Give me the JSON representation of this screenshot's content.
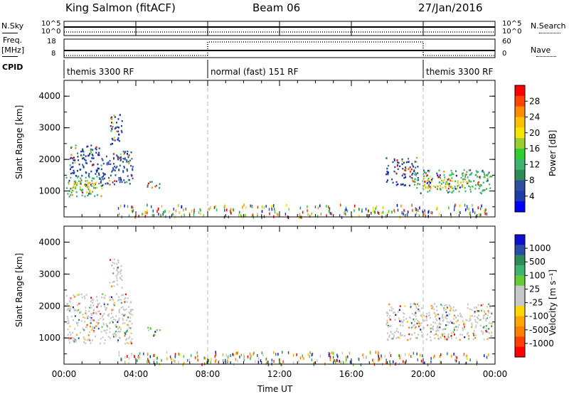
{
  "header": {
    "station": "King Salmon (fitACF)",
    "beam": "Beam 06",
    "date": "27/Jan/2016"
  },
  "strip": {
    "nsky_label": "N.Sky",
    "nsky_ticks": [
      "10^5",
      "10^0"
    ],
    "nsearch_label": "N.Search",
    "nsearch_ticks": [
      "10^5",
      "10^0"
    ],
    "freq_label": "Freq.",
    "freq_unit": "[MHz]",
    "freq_ticks": [
      "18",
      "8"
    ],
    "nave_label": "Nave",
    "nave_ticks": [
      "60",
      "0"
    ],
    "cpid_label": "CPID",
    "cpid_segments": [
      {
        "label": "themis 3300 RF",
        "start_hour": 0,
        "end_hour": 8
      },
      {
        "label": "normal (fast) 151 RF",
        "start_hour": 8,
        "end_hour": 20
      },
      {
        "label": "themis 3300 RF",
        "start_hour": 20,
        "end_hour": 24
      }
    ]
  },
  "colorbars": {
    "power": {
      "label": "Power [dB]",
      "ticks": [
        "28",
        "24",
        "20",
        "16",
        "12",
        "8",
        "4"
      ],
      "colors": [
        "#ff0000",
        "#ff4500",
        "#ff8c00",
        "#ffc000",
        "#f5e600",
        "#9acd32",
        "#32cd32",
        "#3cb371",
        "#2e8b57",
        "#2f4f9f",
        "#1e3ca8",
        "#0000ff"
      ]
    },
    "velocity": {
      "label": "Velocity",
      "unit": "[m s⁻¹]",
      "ticks": [
        "1000",
        "500",
        "100",
        "25",
        "-25",
        "-100",
        "-500",
        "-1000"
      ],
      "colors": [
        "#1010d0",
        "#2a4ea8",
        "#2e8b57",
        "#3cb371",
        "#66cc33",
        "#c8c8c8",
        "#c8c8c8",
        "#ffd700",
        "#ffa500",
        "#ff7f00",
        "#ff4000",
        "#ff0000"
      ]
    }
  },
  "chart_data": [
    {
      "type": "heatmap",
      "quantity": "power",
      "ylabel": "Slant Range [km]",
      "ylim": [
        180,
        4500
      ],
      "y_ticks": [
        "1000",
        "2000",
        "3000",
        "4000"
      ],
      "x_range_hours": [
        0,
        24
      ],
      "x_ticks": [
        "00:00",
        "04:00",
        "08:00",
        "12:00",
        "16:00",
        "20:00",
        "00:00"
      ],
      "regions": [
        {
          "t0": 0.1,
          "t1": 2.2,
          "r0": 850,
          "r1": 1500,
          "color": "#3cb371"
        },
        {
          "t0": 0.2,
          "t1": 1.8,
          "r0": 1000,
          "r1": 1300,
          "color": "#ffc000"
        },
        {
          "t0": 2.0,
          "t1": 3.8,
          "r0": 1200,
          "r1": 2300,
          "color": "#2f4f9f"
        },
        {
          "t0": 0.3,
          "t1": 2.0,
          "r0": 1500,
          "r1": 2500,
          "color": "#1e3ca8"
        },
        {
          "t0": 4.6,
          "t1": 5.3,
          "r0": 1100,
          "r1": 1350,
          "color": "#2e8b57"
        },
        {
          "t0": 17.9,
          "t1": 19.7,
          "r0": 1200,
          "r1": 2100,
          "color": "#1e3ca8"
        },
        {
          "t0": 19.5,
          "t1": 23.8,
          "r0": 950,
          "r1": 1700,
          "color": "#3cb371"
        },
        {
          "t0": 20.0,
          "t1": 22.5,
          "r0": 1100,
          "r1": 1400,
          "color": "#ffc000"
        },
        {
          "t0": 2.5,
          "t1": 3.2,
          "r0": 2500,
          "r1": 3500,
          "color": "#1e3ca8"
        }
      ],
      "ground_scatter": {
        "t0": 3.0,
        "t1": 23.6,
        "r0": 200,
        "r1": 600
      }
    },
    {
      "type": "heatmap",
      "quantity": "velocity",
      "ylabel": "Slant Range [km]",
      "ylim": [
        180,
        4500
      ],
      "y_ticks": [
        "1000",
        "2000",
        "3000",
        "4000"
      ],
      "x_range_hours": [
        0,
        24
      ],
      "x_ticks": [
        "00:00",
        "04:00",
        "08:00",
        "12:00",
        "16:00",
        "20:00",
        "00:00"
      ],
      "xlabel": "Time UT",
      "regions": [
        {
          "t0": 0.1,
          "t1": 3.8,
          "r0": 850,
          "r1": 2400,
          "color": "#c8c8c8"
        },
        {
          "t0": 4.6,
          "t1": 5.3,
          "r0": 1100,
          "r1": 1350,
          "color": "#66cc33"
        },
        {
          "t0": 17.9,
          "t1": 23.8,
          "r0": 950,
          "r1": 2100,
          "color": "#c8c8c8"
        },
        {
          "t0": 2.5,
          "t1": 3.2,
          "r0": 2500,
          "r1": 3500,
          "color": "#c8c8c8"
        }
      ],
      "ground_scatter": {
        "t0": 3.0,
        "t1": 23.6,
        "r0": 200,
        "r1": 600
      }
    }
  ]
}
